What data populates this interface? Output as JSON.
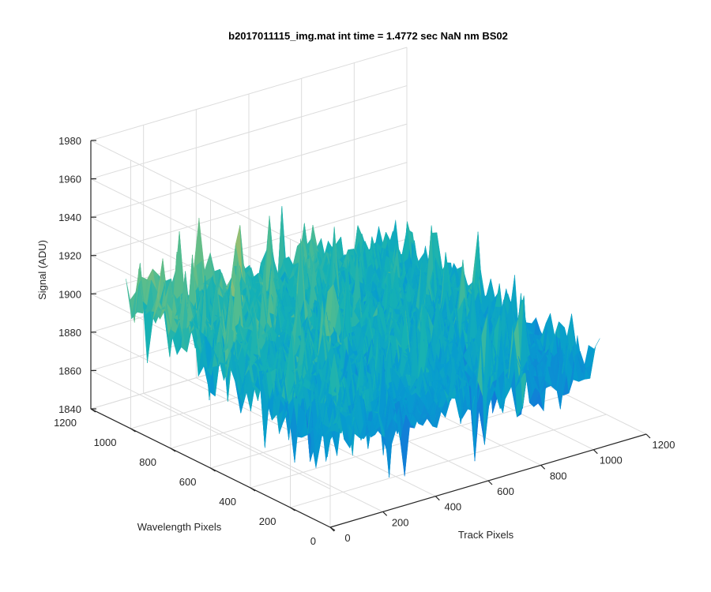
{
  "chart_data": {
    "type": "surface",
    "title": "b2017011115_img.mat int time = 1.4772 sec  NaN nm BS02",
    "xlabel": "Track Pixels",
    "ylabel": "Wavelength Pixels",
    "zlabel": "Signal (ADU)",
    "xlim": [
      0,
      1200
    ],
    "ylim": [
      0,
      1200
    ],
    "zlim": [
      1840,
      1980
    ],
    "xticks": [
      "0",
      "200",
      "400",
      "600",
      "800",
      "1000",
      "1200"
    ],
    "yticks": [
      "0",
      "200",
      "400",
      "600",
      "800",
      "1000",
      "1200"
    ],
    "zticks": [
      "1840",
      "1860",
      "1880",
      "1900",
      "1920",
      "1940",
      "1960",
      "1980"
    ],
    "grid": true,
    "colormap": "parula",
    "surface_summary": {
      "x_range": [
        0,
        1024
      ],
      "y_range": [
        0,
        1024
      ],
      "z_typical": 1890,
      "z_min_approx": 1845,
      "z_max_approx": 1965,
      "high_corner": "track 0, wavelength 1024 (back)",
      "low_corner": "track 0, wavelength 0 (front)"
    }
  },
  "colors": {
    "background": "#ffffff",
    "axis": "#262626",
    "grid": "#dcdcdc",
    "parula_low": "#0072bd",
    "parula_mid": "#2ab7b0",
    "parula_high": "#e6c531"
  }
}
